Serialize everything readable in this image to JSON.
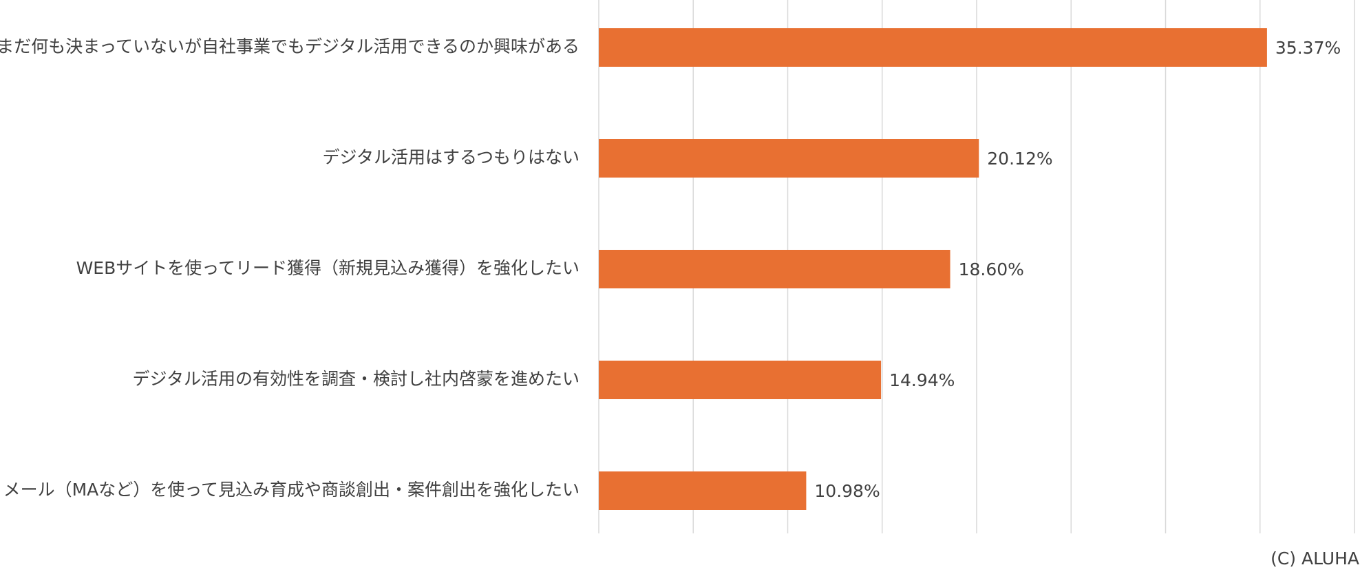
{
  "chart_data": {
    "type": "barh",
    "categories": [
      "まだ何も決まっていないが自社事業でもデジタル活用できるのか興味がある",
      "デジタル活用はするつもりはない",
      "WEBサイトを使ってリード獲得（新規見込み獲得）を強化したい",
      "デジタル活用の有効性を調査・検討し社内啓蒙を進めたい",
      "メール（MAなど）を使って見込み育成や商談創出・案件創出を強化したい"
    ],
    "values": [
      35.37,
      20.12,
      18.6,
      14.94,
      10.98
    ],
    "value_labels": [
      "35.37%",
      "20.12%",
      "18.60%",
      "14.94%",
      "10.98%"
    ],
    "color": "#e87032",
    "xlim": [
      0,
      40
    ],
    "xticks": [
      0,
      5,
      10,
      15,
      20,
      25,
      30,
      35,
      40
    ],
    "grid": true,
    "copyright": "(C) ALUHA"
  }
}
